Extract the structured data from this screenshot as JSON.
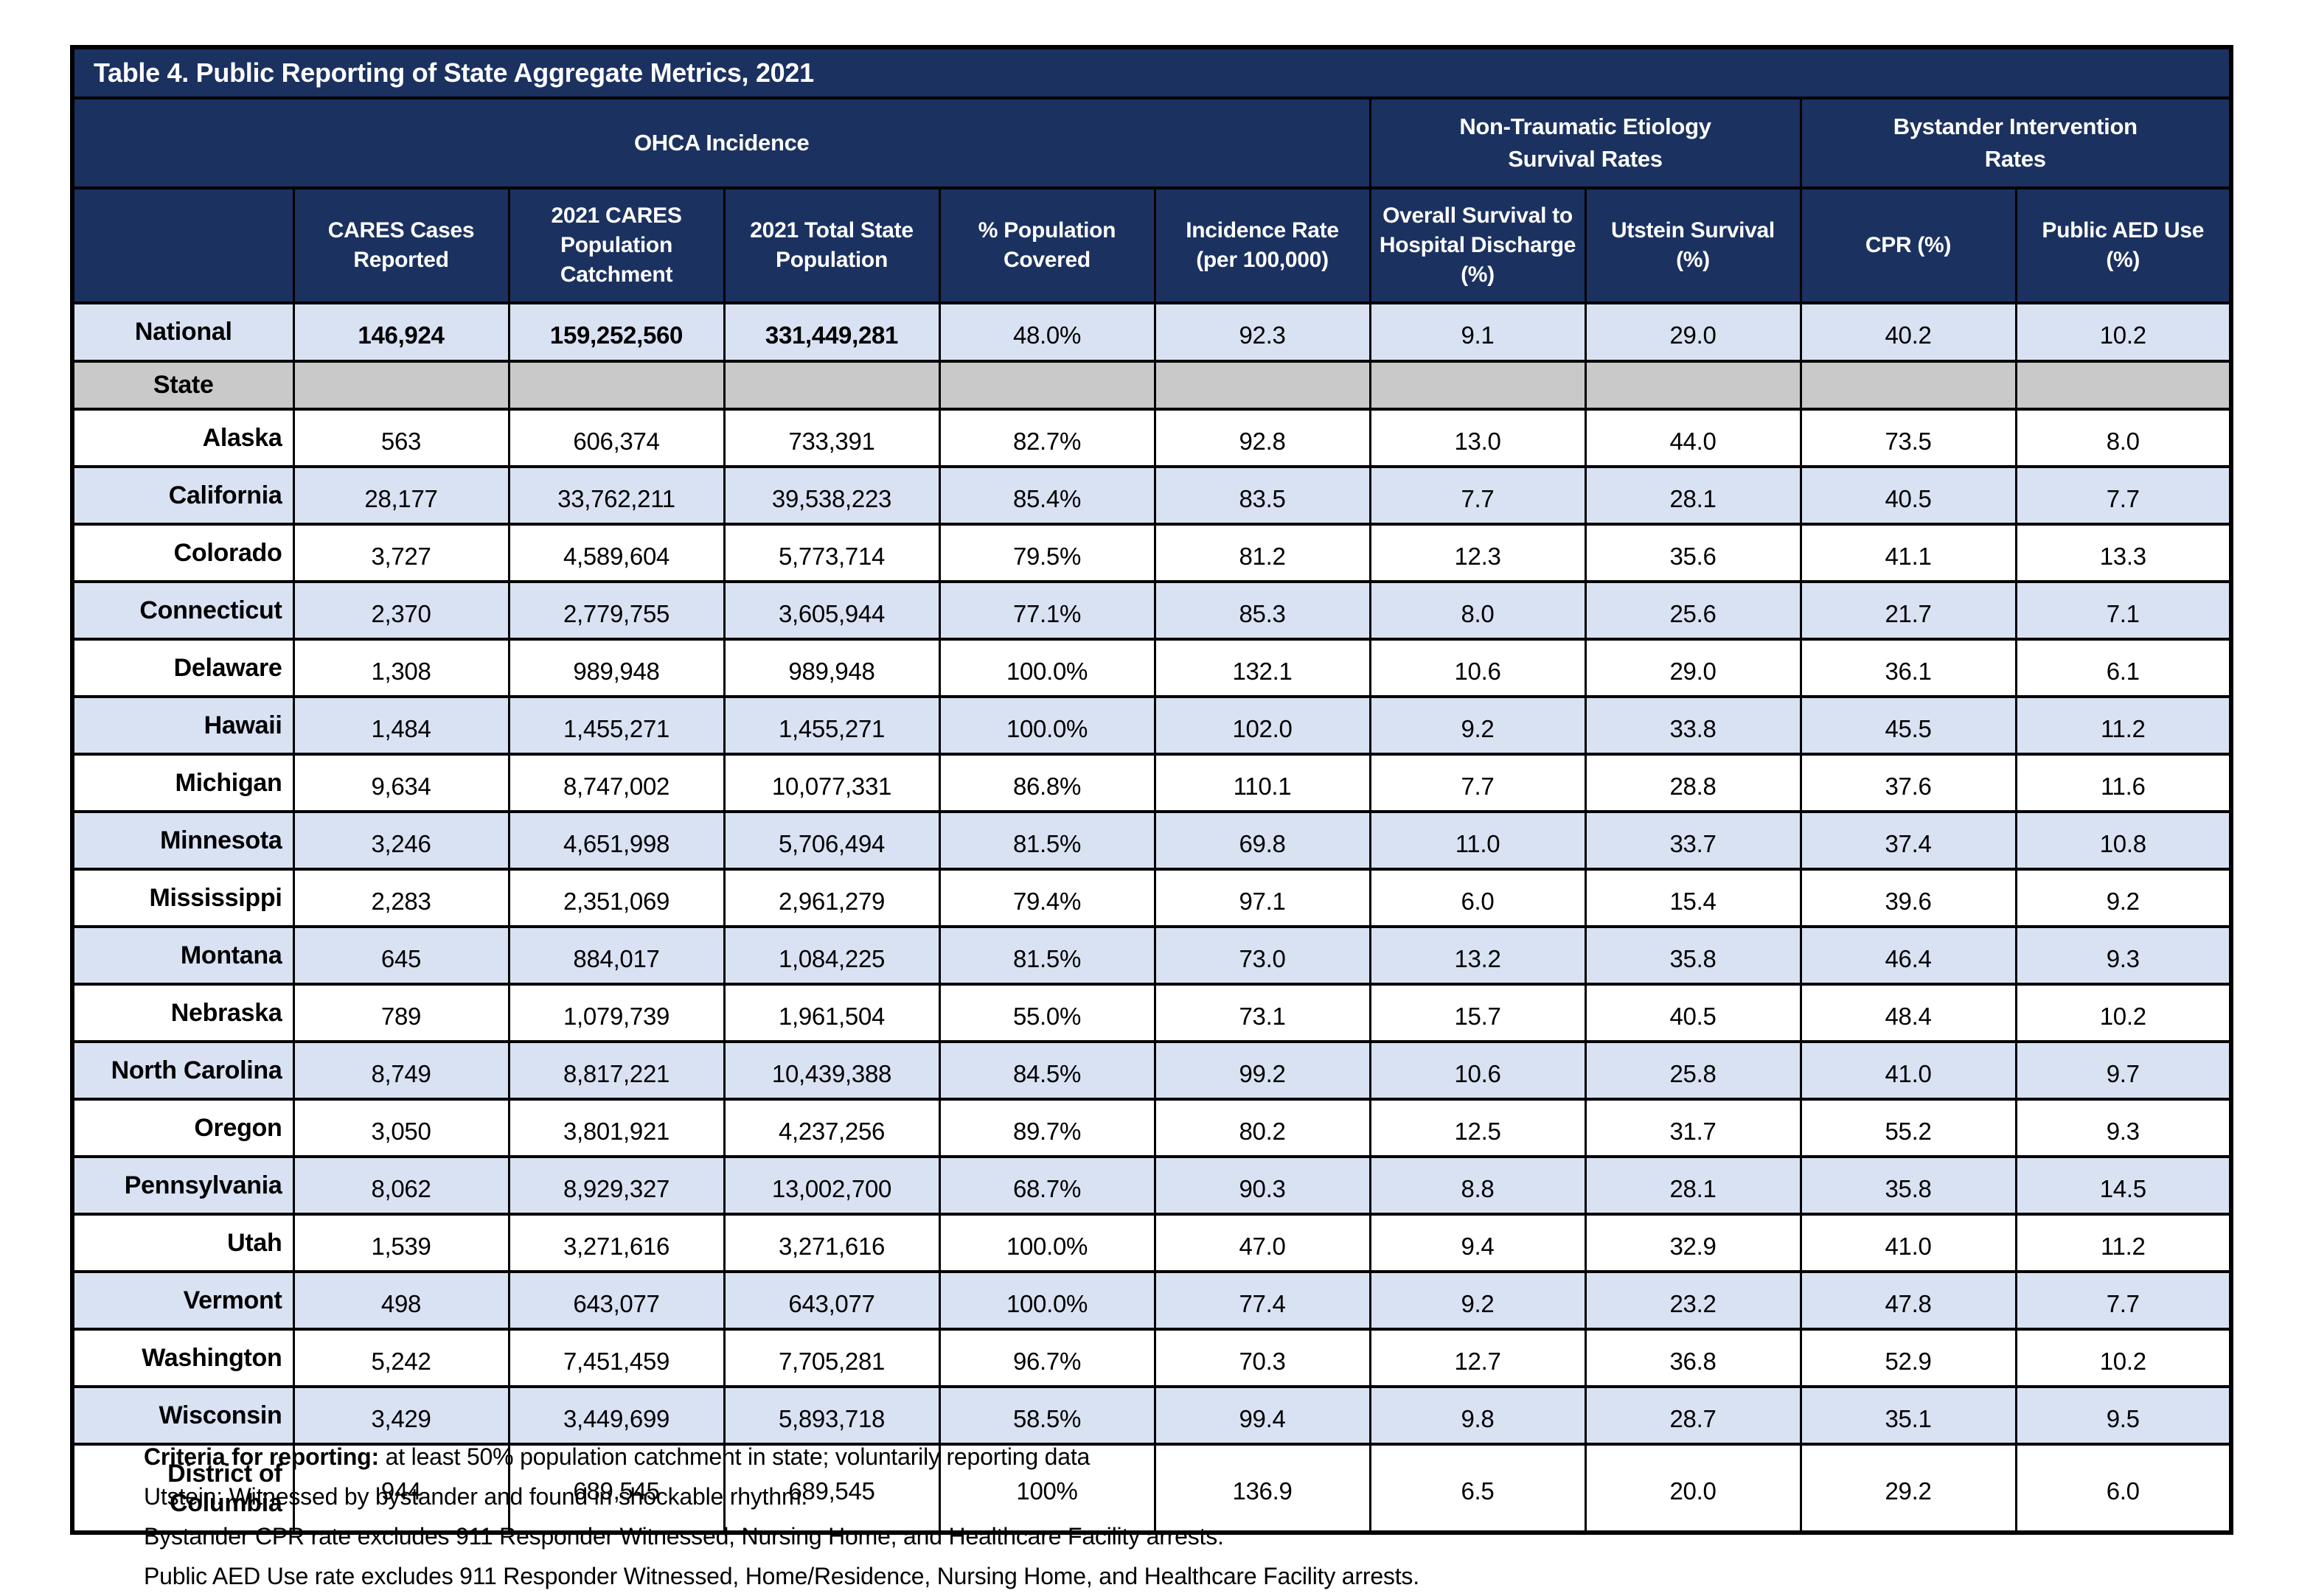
{
  "title": "Table 4. Public Reporting of State Aggregate Metrics, 2021",
  "colors": {
    "navy": "#1B3160",
    "row_blue": "#D9E2F3",
    "divider_gray": "#C9C9C9",
    "border": "#000000"
  },
  "column_groups": [
    {
      "label": "OHCA Incidence"
    },
    {
      "label": "Non-Traumatic Etiology Survival Rates"
    },
    {
      "label": "Bystander Intervention Rates"
    }
  ],
  "columns": [
    "CARES Cases Reported",
    "2021 CARES Population Catchment",
    "2021 Total State Population",
    "% Population Covered",
    "Incidence Rate (per 100,000)",
    "Overall Survival to Hospital Discharge (%)",
    "Utstein Survival (%)",
    "CPR (%)",
    "Public AED Use (%)"
  ],
  "national_row": {
    "label": "National",
    "values": [
      "146,924",
      "159,252,560",
      "331,449,281",
      "48.0%",
      "92.3",
      "9.1",
      "29.0",
      "40.2",
      "10.2"
    ],
    "bold_value_indices": [
      0,
      1,
      2
    ]
  },
  "state_section_label": "State",
  "rows": [
    {
      "label": "Alaska",
      "values": [
        "563",
        "606,374",
        "733,391",
        "82.7%",
        "92.8",
        "13.0",
        "44.0",
        "73.5",
        "8.0"
      ]
    },
    {
      "label": "California",
      "values": [
        "28,177",
        "33,762,211",
        "39,538,223",
        "85.4%",
        "83.5",
        "7.7",
        "28.1",
        "40.5",
        "7.7"
      ]
    },
    {
      "label": "Colorado",
      "values": [
        "3,727",
        "4,589,604",
        "5,773,714",
        "79.5%",
        "81.2",
        "12.3",
        "35.6",
        "41.1",
        "13.3"
      ]
    },
    {
      "label": "Connecticut",
      "values": [
        "2,370",
        "2,779,755",
        "3,605,944",
        "77.1%",
        "85.3",
        "8.0",
        "25.6",
        "21.7",
        "7.1"
      ]
    },
    {
      "label": "Delaware",
      "values": [
        "1,308",
        "989,948",
        "989,948",
        "100.0%",
        "132.1",
        "10.6",
        "29.0",
        "36.1",
        "6.1"
      ]
    },
    {
      "label": "Hawaii",
      "values": [
        "1,484",
        "1,455,271",
        "1,455,271",
        "100.0%",
        "102.0",
        "9.2",
        "33.8",
        "45.5",
        "11.2"
      ]
    },
    {
      "label": "Michigan",
      "values": [
        "9,634",
        "8,747,002",
        "10,077,331",
        "86.8%",
        "110.1",
        "7.7",
        "28.8",
        "37.6",
        "11.6"
      ]
    },
    {
      "label": "Minnesota",
      "values": [
        "3,246",
        "4,651,998",
        "5,706,494",
        "81.5%",
        "69.8",
        "11.0",
        "33.7",
        "37.4",
        "10.8"
      ]
    },
    {
      "label": "Mississippi",
      "values": [
        "2,283",
        "2,351,069",
        "2,961,279",
        "79.4%",
        "97.1",
        "6.0",
        "15.4",
        "39.6",
        "9.2"
      ]
    },
    {
      "label": "Montana",
      "values": [
        "645",
        "884,017",
        "1,084,225",
        "81.5%",
        "73.0",
        "13.2",
        "35.8",
        "46.4",
        "9.3"
      ]
    },
    {
      "label": "Nebraska",
      "values": [
        "789",
        "1,079,739",
        "1,961,504",
        "55.0%",
        "73.1",
        "15.7",
        "40.5",
        "48.4",
        "10.2"
      ]
    },
    {
      "label": "North Carolina",
      "values": [
        "8,749",
        "8,817,221",
        "10,439,388",
        "84.5%",
        "99.2",
        "10.6",
        "25.8",
        "41.0",
        "9.7"
      ]
    },
    {
      "label": "Oregon",
      "values": [
        "3,050",
        "3,801,921",
        "4,237,256",
        "89.7%",
        "80.2",
        "12.5",
        "31.7",
        "55.2",
        "9.3"
      ]
    },
    {
      "label": "Pennsylvania",
      "values": [
        "8,062",
        "8,929,327",
        "13,002,700",
        "68.7%",
        "90.3",
        "8.8",
        "28.1",
        "35.8",
        "14.5"
      ]
    },
    {
      "label": "Utah",
      "values": [
        "1,539",
        "3,271,616",
        "3,271,616",
        "100.0%",
        "47.0",
        "9.4",
        "32.9",
        "41.0",
        "11.2"
      ]
    },
    {
      "label": "Vermont",
      "values": [
        "498",
        "643,077",
        "643,077",
        "100.0%",
        "77.4",
        "9.2",
        "23.2",
        "47.8",
        "7.7"
      ]
    },
    {
      "label": "Washington",
      "values": [
        "5,242",
        "7,451,459",
        "7,705,281",
        "96.7%",
        "70.3",
        "12.7",
        "36.8",
        "52.9",
        "10.2"
      ]
    },
    {
      "label": "Wisconsin",
      "values": [
        "3,429",
        "3,449,699",
        "5,893,718",
        "58.5%",
        "99.4",
        "9.8",
        "28.7",
        "35.1",
        "9.5"
      ]
    },
    {
      "label": "District of Columbia",
      "values": [
        "944",
        "689,545",
        "689,545",
        "100%",
        "136.9",
        "6.5",
        "20.0",
        "29.2",
        "6.0"
      ]
    }
  ],
  "footnotes": [
    {
      "bold": "Criteria for reporting:",
      "text": " at least 50% population catchment in state; voluntarily reporting data"
    },
    {
      "bold": "",
      "text": "Utstein: Witnessed by bystander and found in shockable rhythm."
    },
    {
      "bold": "",
      "text": "Bystander CPR rate excludes 911 Responder Witnessed, Nursing Home, and Healthcare Facility arrests."
    },
    {
      "bold": "",
      "text": "Public AED Use rate excludes 911 Responder Witnessed, Home/Residence, Nursing Home, and Healthcare Facility arrests."
    }
  ]
}
